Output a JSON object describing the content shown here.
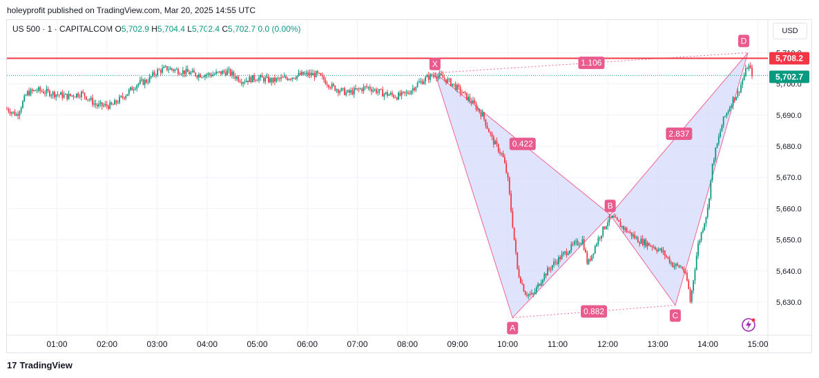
{
  "publisher": "holeyprofit published on TradingView.com, Mar 20, 2025 14:55 UTC",
  "legend": {
    "symbol": "US 500 · 1 · CAPITALCOM",
    "o_label": "O",
    "o_value": "5,702.9",
    "h_label": "H",
    "h_value": "5,704.4",
    "l_label": "L",
    "l_value": "5,702.4",
    "c_label": "C",
    "c_value": "5,702.7",
    "change": "0.0 (0.00%)"
  },
  "currency": "USD",
  "brand": "TradingView",
  "colors": {
    "up": "#089981",
    "down": "#f23645",
    "resistance": "#f23645",
    "pattern_fill": "#d1d9fb",
    "pattern_line": "#f06292",
    "label_bg": "#e95a8d"
  },
  "chart_data": {
    "type": "candlestick",
    "y_ticks": [
      "5,630.0",
      "5,640.0",
      "5,650.0",
      "5,660.0",
      "5,670.0",
      "5,680.0",
      "5,690.0",
      "5,700.0",
      "5,710.0"
    ],
    "y_tick_values": [
      5630,
      5640,
      5650,
      5660,
      5670,
      5680,
      5690,
      5700,
      5710
    ],
    "x_ticks": [
      "01:00",
      "02:00",
      "03:00",
      "04:00",
      "05:00",
      "06:00",
      "07:00",
      "08:00",
      "09:00",
      "10:00",
      "11:00",
      "12:00",
      "13:00",
      "14:00",
      "15:00"
    ],
    "x_tick_hours": [
      1,
      2,
      3,
      4,
      5,
      6,
      7,
      8,
      9,
      10,
      11,
      12,
      13,
      14,
      15
    ],
    "resistance_level": {
      "value": 5708.2,
      "label": "5,708.2"
    },
    "last_price": {
      "value": 5702.7,
      "label": "5,702.7"
    },
    "harmonic_pattern": {
      "points": [
        {
          "name": "X",
          "time": 8.55,
          "price": 5703.5
        },
        {
          "name": "A",
          "time": 10.1,
          "price": 5625.0
        },
        {
          "name": "B",
          "time": 12.05,
          "price": 5658.0
        },
        {
          "name": "C",
          "time": 13.35,
          "price": 5629.0
        },
        {
          "name": "D",
          "time": 14.8,
          "price": 5710.0
        }
      ],
      "ratios": [
        {
          "label": "0.422",
          "between": "X-B"
        },
        {
          "label": "0.882",
          "between": "A-C"
        },
        {
          "label": "2.837",
          "between": "B-D"
        },
        {
          "label": "1.106",
          "between": "X-D"
        }
      ]
    },
    "price_path": [
      [
        0.0,
        5692
      ],
      [
        0.2,
        5690
      ],
      [
        0.4,
        5697
      ],
      [
        0.6,
        5698
      ],
      [
        0.9,
        5697
      ],
      [
        1.2,
        5696
      ],
      [
        1.5,
        5697
      ],
      [
        1.8,
        5693
      ],
      [
        2.1,
        5693
      ],
      [
        2.4,
        5697
      ],
      [
        2.6,
        5700
      ],
      [
        2.8,
        5701
      ],
      [
        3.0,
        5704
      ],
      [
        3.2,
        5705
      ],
      [
        3.5,
        5704
      ],
      [
        3.8,
        5703
      ],
      [
        4.1,
        5703
      ],
      [
        4.4,
        5704
      ],
      [
        4.7,
        5701
      ],
      [
        5.0,
        5702
      ],
      [
        5.3,
        5701
      ],
      [
        5.6,
        5702
      ],
      [
        5.9,
        5703
      ],
      [
        6.2,
        5703
      ],
      [
        6.5,
        5699
      ],
      [
        6.8,
        5697
      ],
      [
        7.0,
        5698
      ],
      [
        7.2,
        5699
      ],
      [
        7.5,
        5697
      ],
      [
        7.8,
        5696
      ],
      [
        8.0,
        5697
      ],
      [
        8.2,
        5700
      ],
      [
        8.4,
        5702
      ],
      [
        8.55,
        5703
      ],
      [
        8.7,
        5702
      ],
      [
        8.9,
        5700
      ],
      [
        9.1,
        5697
      ],
      [
        9.3,
        5694
      ],
      [
        9.5,
        5690
      ],
      [
        9.7,
        5682
      ],
      [
        9.9,
        5677
      ],
      [
        10.0,
        5670
      ],
      [
        10.1,
        5655
      ],
      [
        10.2,
        5640
      ],
      [
        10.35,
        5633
      ],
      [
        10.5,
        5632
      ],
      [
        10.7,
        5638
      ],
      [
        10.9,
        5642
      ],
      [
        11.1,
        5645
      ],
      [
        11.3,
        5648
      ],
      [
        11.5,
        5650
      ],
      [
        11.6,
        5642
      ],
      [
        11.8,
        5650
      ],
      [
        12.0,
        5656
      ],
      [
        12.1,
        5657
      ],
      [
        12.3,
        5654
      ],
      [
        12.6,
        5650
      ],
      [
        12.9,
        5648
      ],
      [
        13.1,
        5646
      ],
      [
        13.3,
        5642
      ],
      [
        13.5,
        5641
      ],
      [
        13.6,
        5636
      ],
      [
        13.65,
        5630
      ],
      [
        13.8,
        5648
      ],
      [
        14.0,
        5660
      ],
      [
        14.1,
        5675
      ],
      [
        14.3,
        5688
      ],
      [
        14.5,
        5695
      ],
      [
        14.6,
        5697
      ],
      [
        14.8,
        5706
      ],
      [
        14.9,
        5703
      ]
    ]
  }
}
